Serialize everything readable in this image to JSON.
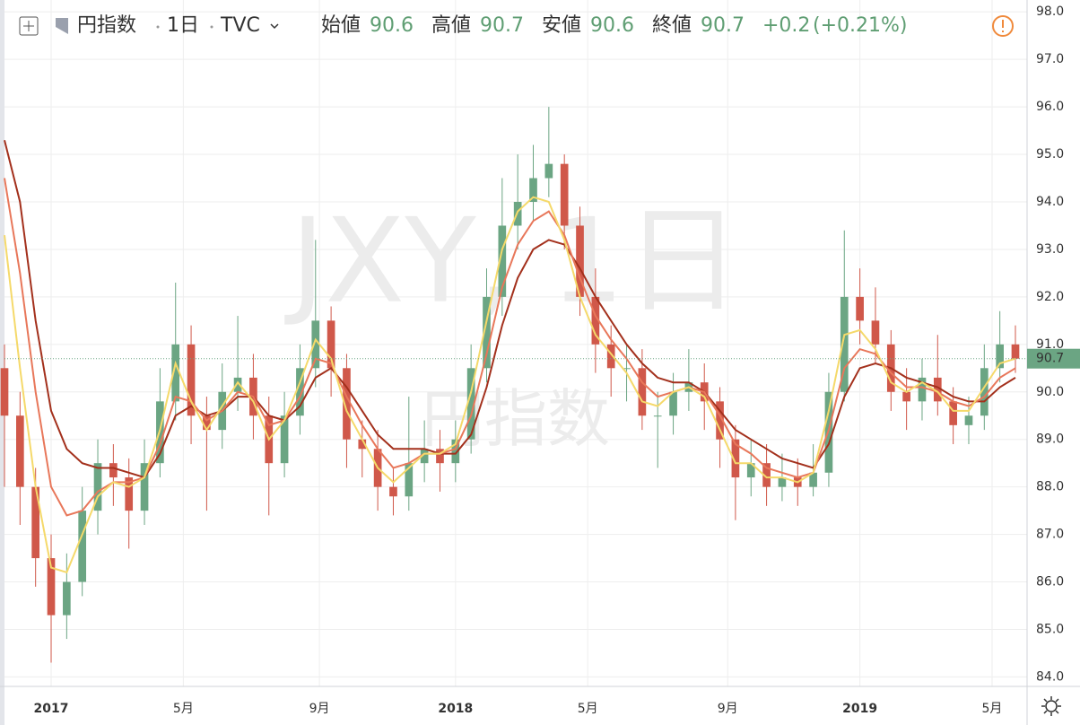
{
  "header": {
    "symbol": "円指数",
    "interval": "1日",
    "source": "TVC",
    "open_label": "始値",
    "open": "90.6",
    "high_label": "高値",
    "high": "90.7",
    "low_label": "安値",
    "low": "90.6",
    "close_label": "終値",
    "close": "90.7",
    "change": "+0.2",
    "change_pct": "(+0.21%)"
  },
  "chart_data": {
    "type": "candlestick",
    "watermark": {
      "line1": "JXY, 1日",
      "line2": "円指数"
    },
    "x": [
      -6,
      -4,
      -2,
      0,
      2,
      4,
      6,
      8,
      10,
      12,
      14,
      16,
      18,
      20,
      22,
      24,
      26,
      28,
      30,
      32,
      34,
      36,
      38,
      40,
      42,
      44,
      46,
      48,
      50,
      52,
      54,
      56,
      58,
      60,
      62,
      64,
      66,
      68,
      70,
      72,
      74,
      76,
      78,
      80,
      82,
      84,
      86,
      88,
      90,
      92,
      94,
      96,
      98,
      100,
      102,
      104,
      106,
      108,
      110,
      112,
      114,
      116,
      118,
      120,
      122,
      124
    ],
    "open": [
      90.5,
      89.5,
      88.0,
      86.5,
      85.3,
      86.0,
      87.5,
      88.5,
      88.2,
      87.5,
      88.5,
      89.8,
      91.0,
      89.5,
      89.2,
      90.0,
      90.3,
      89.5,
      88.5,
      89.5,
      90.5,
      91.5,
      90.5,
      89.0,
      88.8,
      88.0,
      87.8,
      88.5,
      88.8,
      88.5,
      89.0,
      90.5,
      92.0,
      93.5,
      94.0,
      94.5,
      94.8,
      93.5,
      92.0,
      91.0,
      90.5,
      90.5,
      89.5,
      89.5,
      90.0,
      90.2,
      89.8,
      89.0,
      88.2,
      88.5,
      88.0,
      88.2,
      88.0,
      88.3,
      90.0,
      92.0,
      91.5,
      91.0,
      90.0,
      89.8,
      90.3,
      89.8,
      89.3,
      89.5,
      90.5,
      91.0
    ],
    "high": [
      91.0,
      90.0,
      88.4,
      87.0,
      86.6,
      88.0,
      89.0,
      88.9,
      88.6,
      89.0,
      90.5,
      92.3,
      91.4,
      89.9,
      90.6,
      91.6,
      90.8,
      89.9,
      90.0,
      91.0,
      93.2,
      91.8,
      90.8,
      89.4,
      89.2,
      88.4,
      89.9,
      89.4,
      89.2,
      89.4,
      91.0,
      92.6,
      94.5,
      95.0,
      95.2,
      96.0,
      95.0,
      93.9,
      92.6,
      91.4,
      91.0,
      90.9,
      90.0,
      90.4,
      90.9,
      90.6,
      90.1,
      89.3,
      89.0,
      88.9,
      88.7,
      88.6,
      88.9,
      90.4,
      93.4,
      92.6,
      92.2,
      91.3,
      90.5,
      90.7,
      91.2,
      90.1,
      89.9,
      91.0,
      91.7,
      91.4
    ],
    "low": [
      88.0,
      87.2,
      85.9,
      84.3,
      84.8,
      85.7,
      87.0,
      87.6,
      86.7,
      87.2,
      88.2,
      89.4,
      88.9,
      87.5,
      88.8,
      89.6,
      89.0,
      87.4,
      88.2,
      89.1,
      90.1,
      89.9,
      88.4,
      88.2,
      87.5,
      87.4,
      87.5,
      88.1,
      87.9,
      88.1,
      88.7,
      90.2,
      91.6,
      93.0,
      93.6,
      94.1,
      93.0,
      91.6,
      90.4,
      89.9,
      89.8,
      89.2,
      88.4,
      89.1,
      89.6,
      89.2,
      88.4,
      87.3,
      87.8,
      87.6,
      87.7,
      87.6,
      87.8,
      88.0,
      89.8,
      91.0,
      90.6,
      89.6,
      89.2,
      89.4,
      89.5,
      88.9,
      88.9,
      89.2,
      90.2,
      90.4
    ],
    "close": [
      89.5,
      88.0,
      86.5,
      85.3,
      86.0,
      87.5,
      88.5,
      88.2,
      87.5,
      88.5,
      89.8,
      91.0,
      89.5,
      89.2,
      90.0,
      90.3,
      89.5,
      88.5,
      89.5,
      90.5,
      91.5,
      90.5,
      89.0,
      88.8,
      88.0,
      87.8,
      88.5,
      88.8,
      88.5,
      89.0,
      90.5,
      92.0,
      93.5,
      94.0,
      94.5,
      94.8,
      93.5,
      92.0,
      91.0,
      90.5,
      90.5,
      89.5,
      89.5,
      90.0,
      90.2,
      89.8,
      89.0,
      88.2,
      88.5,
      88.0,
      88.2,
      88.0,
      88.3,
      90.0,
      92.0,
      91.5,
      91.0,
      90.0,
      89.8,
      90.3,
      89.8,
      89.3,
      89.5,
      90.5,
      91.0,
      90.7
    ],
    "up_color": "#6ba583",
    "down_color": "#d0584a",
    "series": [
      {
        "color": "#a3301c",
        "values": [
          95.3,
          94.0,
          91.5,
          89.6,
          88.8,
          88.5,
          88.4,
          88.4,
          88.3,
          88.2,
          88.7,
          89.5,
          89.7,
          89.5,
          89.6,
          89.9,
          89.9,
          89.5,
          89.4,
          89.7,
          90.3,
          90.5,
          90.1,
          89.6,
          89.1,
          88.8,
          88.8,
          88.8,
          88.7,
          88.7,
          89.1,
          90.1,
          91.4,
          92.4,
          93.0,
          93.2,
          93.1,
          92.6,
          92.0,
          91.5,
          91.0,
          90.6,
          90.3,
          90.2,
          90.2,
          90.0,
          89.6,
          89.2,
          89.0,
          88.8,
          88.6,
          88.5,
          88.4,
          88.9,
          89.9,
          90.5,
          90.6,
          90.5,
          90.3,
          90.2,
          90.1,
          89.9,
          89.8,
          89.8,
          90.1,
          90.3
        ]
      },
      {
        "color": "#e8775a",
        "values": [
          94.5,
          92.5,
          90.0,
          88.0,
          87.4,
          87.5,
          87.9,
          88.1,
          88.1,
          88.2,
          88.9,
          89.9,
          89.8,
          89.4,
          89.6,
          90.0,
          89.9,
          89.3,
          89.4,
          89.9,
          90.7,
          90.6,
          89.9,
          89.3,
          88.8,
          88.4,
          88.5,
          88.7,
          88.7,
          88.8,
          89.5,
          90.8,
          92.2,
          93.1,
          93.6,
          93.8,
          93.3,
          92.4,
          91.6,
          91.1,
          90.7,
          90.2,
          89.9,
          90.0,
          90.1,
          90.0,
          89.5,
          88.9,
          88.7,
          88.4,
          88.3,
          88.2,
          88.3,
          89.2,
          90.5,
          90.9,
          90.8,
          90.4,
          90.1,
          90.1,
          90.0,
          89.8,
          89.7,
          89.9,
          90.3,
          90.5
        ]
      },
      {
        "color": "#f5d96a",
        "values": [
          93.3,
          90.5,
          88.0,
          86.3,
          86.2,
          87.0,
          87.8,
          88.1,
          88.0,
          88.2,
          89.2,
          90.6,
          89.8,
          89.2,
          89.7,
          90.2,
          89.8,
          89.0,
          89.4,
          90.2,
          91.1,
          90.7,
          89.6,
          89.0,
          88.4,
          88.1,
          88.4,
          88.7,
          88.7,
          88.9,
          90.0,
          91.5,
          93.0,
          93.8,
          94.1,
          94.0,
          93.2,
          92.0,
          91.2,
          90.8,
          90.4,
          89.8,
          89.7,
          90.0,
          90.1,
          89.9,
          89.2,
          88.5,
          88.5,
          88.2,
          88.2,
          88.1,
          88.3,
          89.6,
          91.2,
          91.3,
          90.9,
          90.2,
          90.0,
          90.2,
          90.0,
          89.6,
          89.6,
          90.1,
          90.6,
          90.7
        ]
      }
    ],
    "last_price": 90.7,
    "last_price_color": "#6ba583",
    "xlim": [
      -6,
      125.5
    ],
    "xticks": [
      {
        "value": 0,
        "label": "2017"
      },
      {
        "value": 17,
        "label": "5月"
      },
      {
        "value": 34.5,
        "label": "9月"
      },
      {
        "value": 52,
        "label": "2018"
      },
      {
        "value": 69,
        "label": "5月"
      },
      {
        "value": 87,
        "label": "9月"
      },
      {
        "value": 104,
        "label": "2019"
      },
      {
        "value": 121,
        "label": "5月"
      }
    ],
    "ylim": [
      83.8,
      98.25
    ],
    "yticks": [
      {
        "value": 84,
        "label": "84.0"
      },
      {
        "value": 85,
        "label": "85.0"
      },
      {
        "value": 86,
        "label": "86.0"
      },
      {
        "value": 87,
        "label": "87.0"
      },
      {
        "value": 88,
        "label": "88.0"
      },
      {
        "value": 89,
        "label": "89.0"
      },
      {
        "value": 90,
        "label": "90.0"
      },
      {
        "value": 91,
        "label": "91.0"
      },
      {
        "value": 92,
        "label": "92.0"
      },
      {
        "value": 93,
        "label": "93.0"
      },
      {
        "value": 94,
        "label": "94.0"
      },
      {
        "value": 95,
        "label": "95.0"
      },
      {
        "value": 96,
        "label": "96.0"
      },
      {
        "value": 97,
        "label": "97.0"
      },
      {
        "value": 98,
        "label": "98.0"
      }
    ],
    "grid": true
  }
}
